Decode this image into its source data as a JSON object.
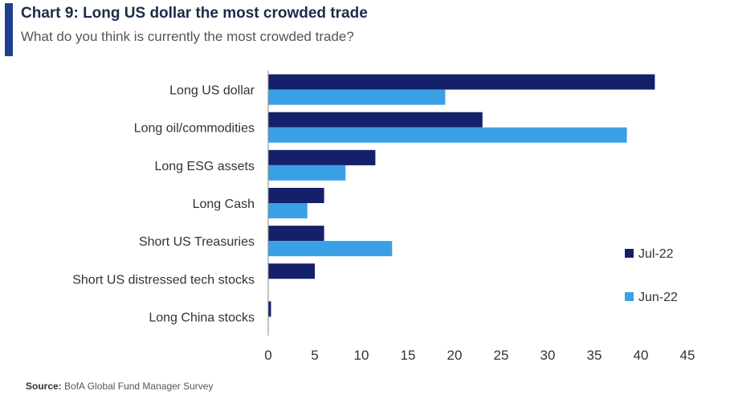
{
  "header": {
    "title": "Chart 9: Long US dollar the most crowded trade",
    "subtitle": "What do you think is currently the most crowded trade?"
  },
  "footer": {
    "source_label": "Source:",
    "source_text": "BofA Global Fund Manager Survey"
  },
  "chart_data": {
    "type": "bar",
    "orientation": "horizontal",
    "title": "Chart 9: Long US dollar the most crowded trade",
    "subtitle": "What do you think is currently the most crowded trade?",
    "categories": [
      "Long US dollar",
      "Long oil/commodities",
      "Long ESG assets",
      "Long Cash",
      "Short US Treasuries",
      "Short US distressed tech stocks",
      "Long China stocks"
    ],
    "series": [
      {
        "name": "Jul-22",
        "color": "#15206b",
        "values": [
          41.5,
          23,
          11.5,
          6,
          6,
          5,
          0.3
        ]
      },
      {
        "name": "Jun-22",
        "color": "#3aa0e6",
        "values": [
          19,
          38.5,
          8.3,
          4.2,
          13.3,
          null,
          null
        ]
      }
    ],
    "xlim": [
      0,
      45
    ],
    "xticks": [
      "0",
      "5",
      "10",
      "15",
      "20",
      "25",
      "30",
      "35",
      "40",
      "45"
    ],
    "xlabel": "",
    "ylabel": "",
    "grid": false,
    "legend": "right"
  }
}
